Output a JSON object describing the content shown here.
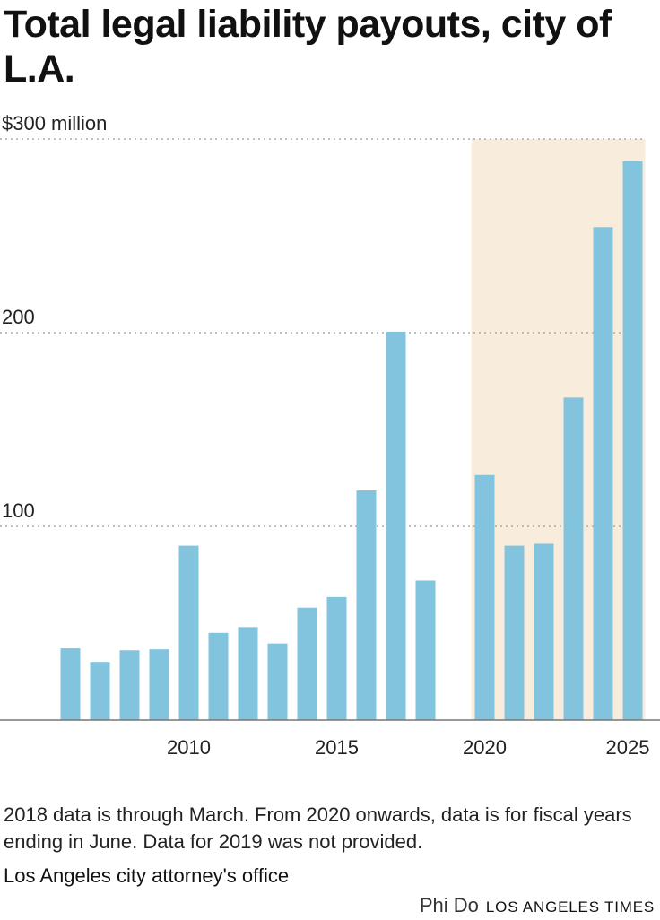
{
  "chart_data": {
    "type": "bar",
    "title": "Total legal liability payouts, city of L.A.",
    "x": [
      2006,
      2007,
      2008,
      2009,
      2010,
      2011,
      2012,
      2013,
      2014,
      2015,
      2016,
      2017,
      2018,
      2019,
      2020,
      2021,
      2022,
      2023,
      2024,
      2025
    ],
    "values": [
      37,
      30,
      36,
      36.5,
      90,
      45,
      48,
      39.5,
      58,
      63.5,
      118.5,
      200.5,
      72,
      null,
      126.5,
      90,
      91,
      166.5,
      254.5,
      288.5
    ],
    "ylim": [
      0,
      300
    ],
    "y_ticks": [
      {
        "value": 100,
        "label": "100"
      },
      {
        "value": 200,
        "label": "200"
      },
      {
        "value": 300,
        "label": "$300 million"
      }
    ],
    "x_ticks": [
      {
        "value": 2010,
        "label": "2010"
      },
      {
        "value": 2015,
        "label": "2015"
      },
      {
        "value": 2020,
        "label": "2020"
      },
      {
        "value": 2025,
        "label": "2025"
      }
    ],
    "highlight_range": [
      2020,
      2025
    ],
    "xlabel": "",
    "ylabel": "",
    "grid": true
  },
  "colors": {
    "bar": "#82c4de",
    "highlight": "#f8ecdd",
    "grid": "#9a9a9a",
    "axis": "#777777"
  },
  "note": "2018 data is through March. From 2020 onwards, data is for fiscal years ending in June. Data for 2019 was not provided.",
  "source": "Los Angeles city attorney's office",
  "credit": {
    "author": "Phi Do",
    "outlet": "LOS ANGELES TIMES"
  }
}
